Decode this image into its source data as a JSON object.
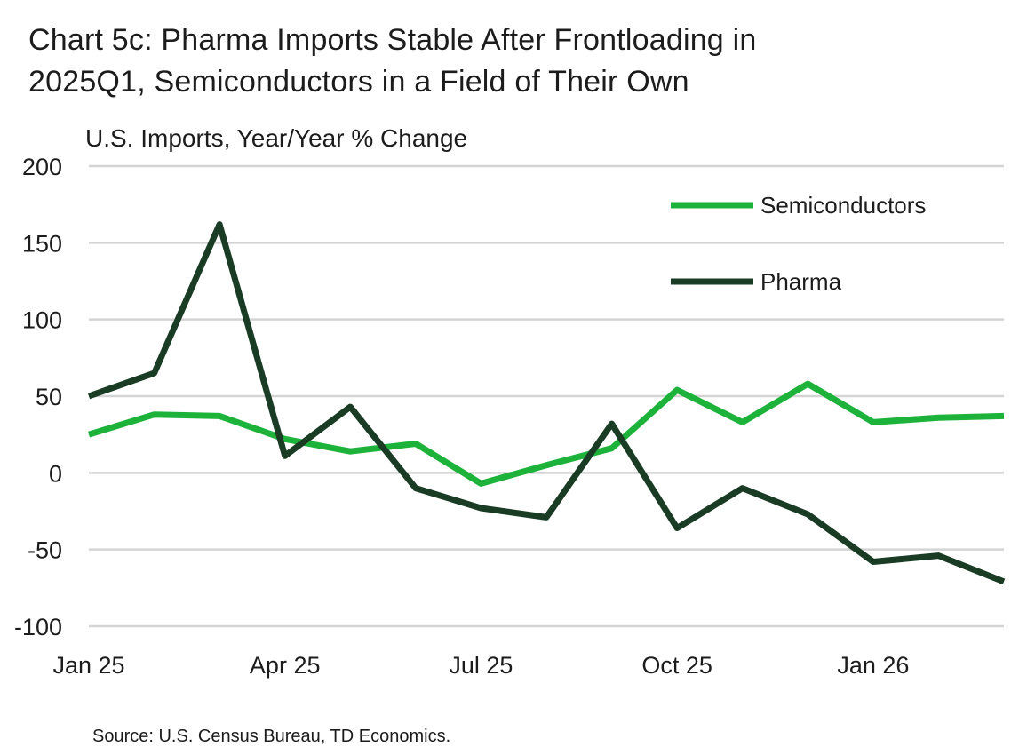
{
  "header": {
    "title_line1": "Chart 5c: Pharma Imports Stable After Frontloading in",
    "title_line2": "2025Q1, Semiconductors in a Field of Their Own",
    "subtitle": "U.S. Imports, Year/Year % Change"
  },
  "footer": {
    "source": "Source: U.S. Census Bureau, TD Economics."
  },
  "colors": {
    "semiconductors": "#1db33b",
    "pharma": "#1a3c25",
    "grid": "#d4d4d4"
  },
  "chart_data": {
    "type": "line",
    "title": "Chart 5c: Pharma Imports Stable After Frontloading in 2025Q1, Semiconductors in a Field of Their Own",
    "ylabel": "U.S. Imports, Year/Year % Change",
    "xlabel": "",
    "x": [
      "2025-01",
      "2025-02",
      "2025-03",
      "2025-04",
      "2025-05",
      "2025-06",
      "2025-07",
      "2025-08",
      "2025-09",
      "2025-10",
      "2025-11",
      "2025-12",
      "2026-01",
      "2026-02",
      "2026-03"
    ],
    "x_tick_labels": [
      {
        "x": "2025-01",
        "label": "Jan 25"
      },
      {
        "x": "2025-04",
        "label": "Apr 25"
      },
      {
        "x": "2025-07",
        "label": "Jul 25"
      },
      {
        "x": "2025-10",
        "label": "Oct 25"
      },
      {
        "x": "2026-01",
        "label": "Jan 26"
      }
    ],
    "yticks": [
      200,
      150,
      100,
      50,
      0,
      -50,
      -100
    ],
    "ylim": [
      -100,
      200
    ],
    "grid": true,
    "legend_position": "top-right",
    "series": [
      {
        "name": "Semiconductors",
        "color": "#1db33b",
        "values": [
          25,
          38,
          37,
          22,
          14,
          19,
          -7,
          5,
          16,
          54,
          33,
          58,
          33,
          36,
          37
        ]
      },
      {
        "name": "Pharma",
        "color": "#1a3c25",
        "values": [
          50,
          65,
          162,
          11,
          43,
          -10,
          -23,
          -29,
          32,
          -36,
          -10,
          -27,
          -58,
          -54,
          -71
        ]
      }
    ]
  }
}
